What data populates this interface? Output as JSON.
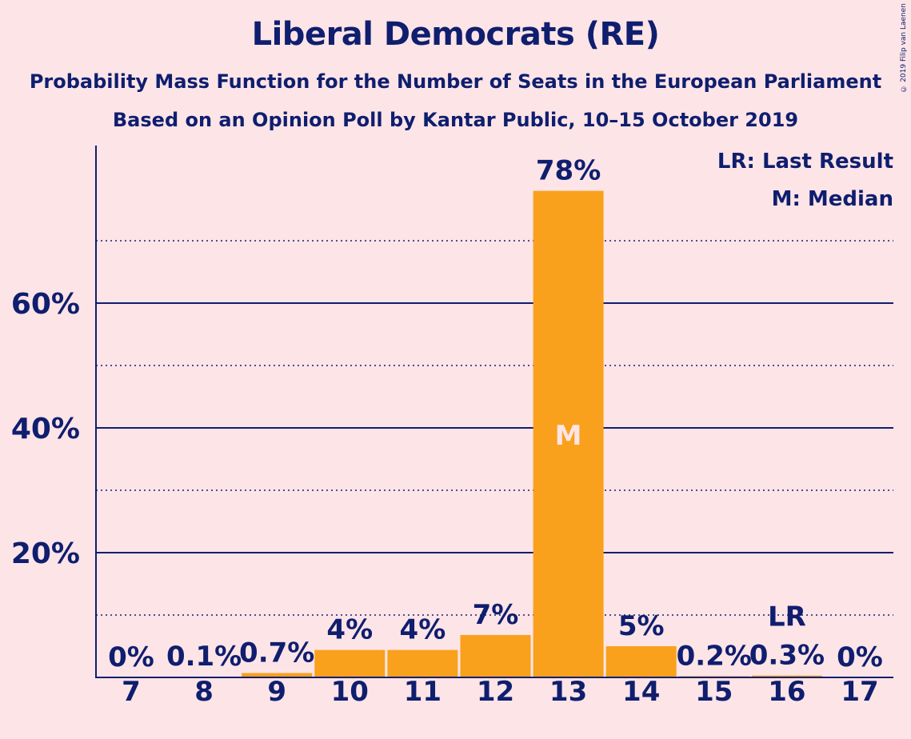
{
  "title": "Liberal Democrats (RE)",
  "subtitle1": "Probability Mass Function for the Number of Seats in the European Parliament",
  "subtitle2": "Based on an Opinion Poll by Kantar Public, 10–15 October 2019",
  "copyright": "© 2019 Filip van Laenen",
  "legend": {
    "last_result": "LR: Last Result",
    "median": "M: Median"
  },
  "colors": {
    "background": "#fde4e7",
    "bar": "#f9a11c",
    "text": "#0f1e6e",
    "median_label": "#fde4e7"
  },
  "chart_data": {
    "type": "bar",
    "categories": [
      "7",
      "8",
      "9",
      "10",
      "11",
      "12",
      "13",
      "14",
      "15",
      "16",
      "17"
    ],
    "values": [
      0,
      0.1,
      0.7,
      4.4,
      4.4,
      6.8,
      78,
      5,
      0.2,
      0.3,
      0
    ],
    "data_labels": [
      "0%",
      "0.1%",
      "0.7%",
      "4%",
      "4%",
      "7%",
      "78%",
      "5%",
      "0.2%",
      "0.3%",
      "0%"
    ],
    "ylim": [
      0,
      85
    ],
    "yticks": [
      20,
      40,
      60
    ],
    "ytick_labels": [
      "20%",
      "40%",
      "60%"
    ],
    "minor_gridlines": [
      10,
      30,
      50,
      70
    ],
    "median_category": "13",
    "median_marker": "M",
    "last_result_category": "16",
    "last_result_marker": "LR",
    "legend_position": "top-right"
  }
}
